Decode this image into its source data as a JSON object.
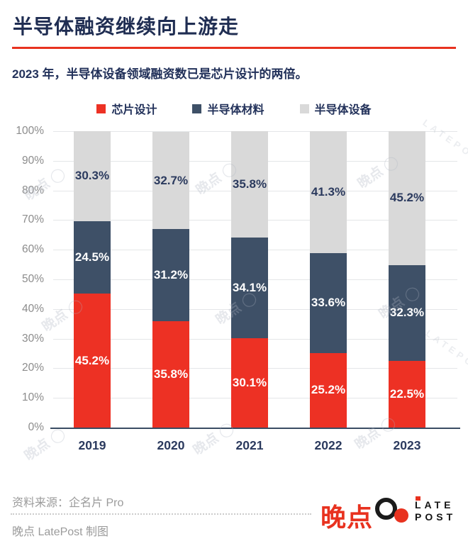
{
  "header": {
    "title": "半导体融资继续向上游走",
    "subtitle": "2023 年，半导体设备领域融资数已是芯片设计的两倍。",
    "accent_color": "#e8321f"
  },
  "chart_data": {
    "type": "bar",
    "stacked": true,
    "title": "半导体融资继续向上游走",
    "categories": [
      "2019",
      "2020",
      "2021",
      "2022",
      "2023"
    ],
    "series": [
      {
        "name": "芯片设计",
        "color": "#ed3124",
        "label_color": "#ffffff",
        "values": [
          45.2,
          35.8,
          30.1,
          25.2,
          22.5
        ]
      },
      {
        "name": "半导体材料",
        "color": "#3e5067",
        "label_color": "#ffffff",
        "values": [
          24.5,
          31.2,
          34.1,
          33.6,
          32.3
        ]
      },
      {
        "name": "半导体设备",
        "color": "#d9d9d9",
        "label_color": "#2b3a5e",
        "values": [
          30.3,
          32.7,
          35.8,
          41.3,
          45.2
        ]
      }
    ],
    "y_ticks": [
      "0%",
      "10%",
      "20%",
      "30%",
      "40%",
      "50%",
      "60%",
      "70%",
      "80%",
      "90%",
      "100%"
    ],
    "ylim": [
      0,
      100
    ],
    "value_suffix": "%",
    "grid": true,
    "legend_position": "top"
  },
  "watermark": {
    "text": "晚点 ◯",
    "brand": "LATEPOST"
  },
  "footer": {
    "source": "资料来源：企名片 Pro",
    "credit": "晚点 LatePost 制图",
    "logo": {
      "cn": "晚点",
      "en_line1": "LATE",
      "en_line2": "POST"
    }
  }
}
